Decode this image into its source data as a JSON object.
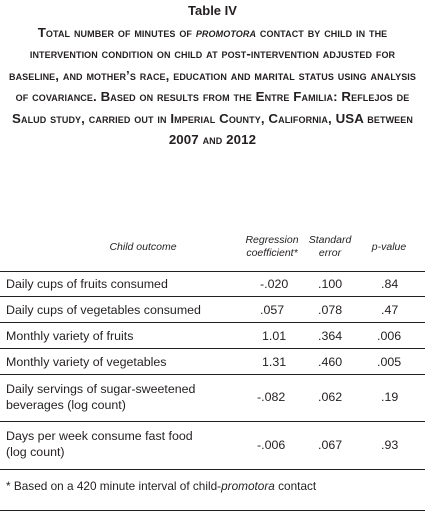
{
  "table_label": "Table IV",
  "title": {
    "part1": "Total number of minutes of ",
    "emph": "promotora",
    "part2": " contact by child in the intervention condition on child at post-intervention adjusted for baseline, and mother’s race, education and marital status using analysis of covariance. Based on results from the Entre Familia: Reflejos de Salud study, carried out in Imperial County, California, USA between 2007 and 2012"
  },
  "columns": {
    "outcome": "Child outcome",
    "coef_line1": "Regression",
    "coef_line2": "coefficient*",
    "se_line1": "Standard",
    "se_line2": "error",
    "p": "p-value"
  },
  "rows": [
    {
      "label_line1": "Daily cups of fruits consumed",
      "label_line2": "",
      "coef": "-.020",
      "se": ".100",
      "p": ".84"
    },
    {
      "label_line1": "Daily cups of vegetables consumed",
      "label_line2": "",
      "coef": ".057",
      "se": ".078",
      "p": ".47"
    },
    {
      "label_line1": "Monthly variety of fruits",
      "label_line2": "",
      "coef": "1.01",
      "se": ".364",
      "p": ".006"
    },
    {
      "label_line1": "Monthly variety of vegetables",
      "label_line2": "",
      "coef": "1.31",
      "se": ".460",
      "p": ".005"
    },
    {
      "label_line1": "Daily servings of sugar-sweetened",
      "label_line2": "beverages (log count)",
      "coef": "-.082",
      "se": ".062",
      "p": ".19"
    },
    {
      "label_line1": "Days per week consume fast food",
      "label_line2": "(log count)",
      "coef": "-.006",
      "se": ".067",
      "p": ".93"
    }
  ],
  "footnote": {
    "part1": "* Based on a 420 minute interval of child-",
    "emph": "promotora",
    "part2": " contact"
  }
}
